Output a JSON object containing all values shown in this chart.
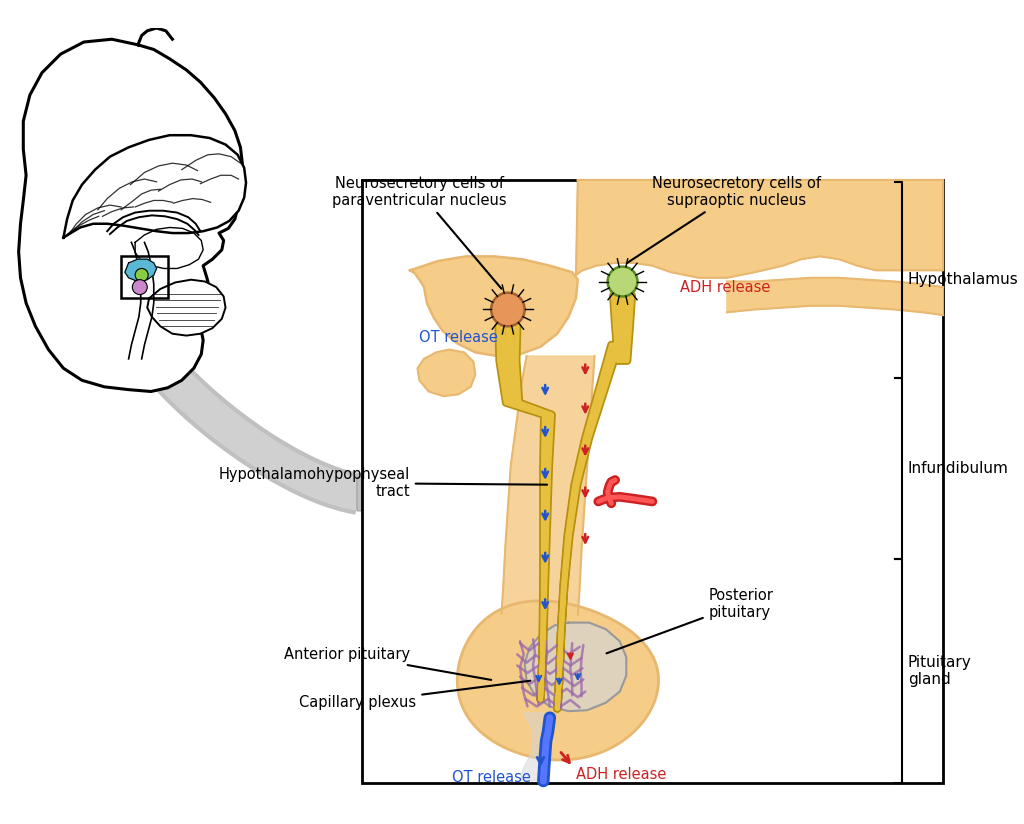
{
  "bg_color": "#ffffff",
  "skin_color": "#f5cc88",
  "skin_light": "#faecd0",
  "skin_dark": "#d4975a",
  "skin_mid": "#e8b870",
  "nerve_yellow": "#e8c040",
  "nerve_dark": "#b89010",
  "blood_red": "#cc2222",
  "blood_blue": "#2255cc",
  "ot_nucleus_color": "#e8955a",
  "adh_nucleus_color": "#b8d878",
  "capillary_purple": "#9966aa",
  "posterior_gray": "#c8c8c8",
  "arrow_gray": "#b0b0b0",
  "text_black": "#1a1a1a",
  "text_red": "#cc2222",
  "text_blue": "#2255cc",
  "labels": {
    "neuro_para": "Neurosecretory cells of\nparaventricular nucleus",
    "neuro_supra": "Neurosecretory cells of\nsupraoptic nucleus",
    "hypothalamus": "Hypothalamus",
    "infundibulum": "Infundibulum",
    "pituitary_gland": "Pituitary\ngland",
    "hypo_tract": "Hypothalamohypophyseal\ntract",
    "anterior_pit": "Anterior pituitary",
    "posterior_pit": "Posterior\npituitary",
    "capillary": "Capillary plexus",
    "ot_release_top": "OT release",
    "adh_release_top": "ADH release",
    "ot_release_bottom": "OT release",
    "adh_release_bottom": "ADH release"
  }
}
